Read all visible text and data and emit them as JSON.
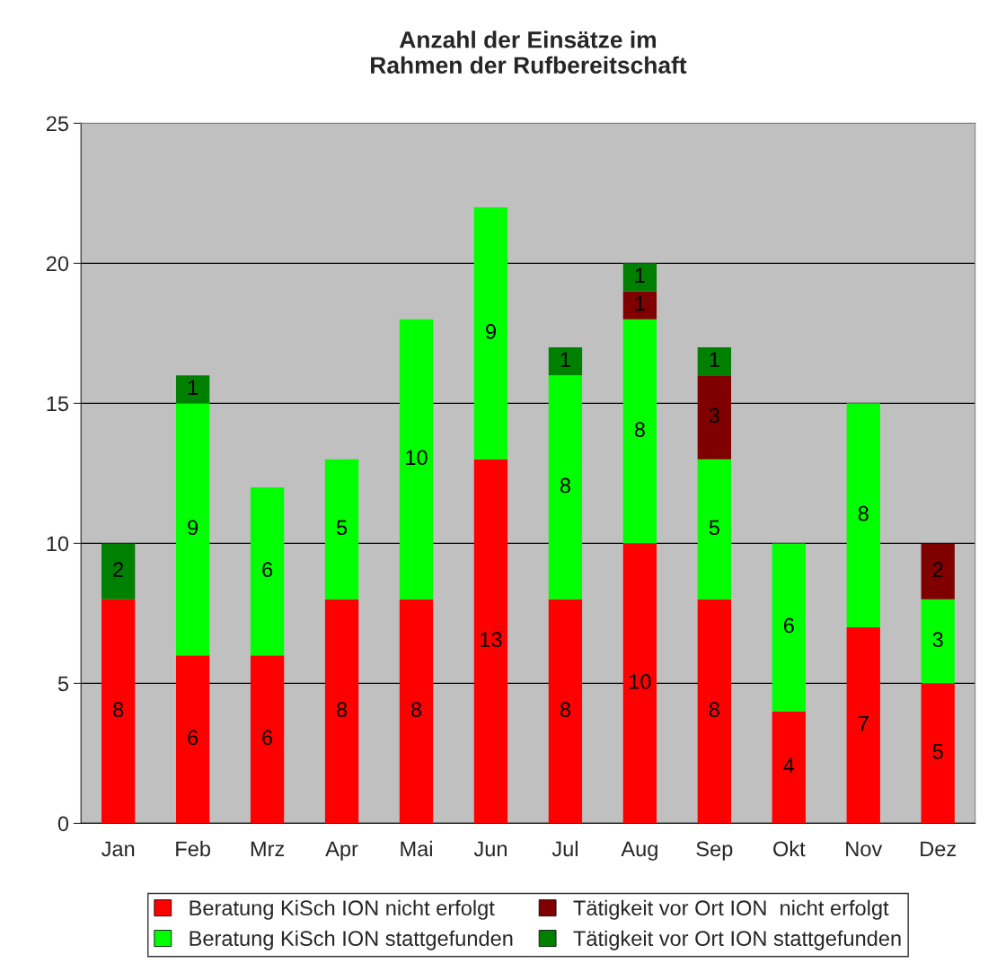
{
  "chart_data": {
    "type": "bar",
    "title": "Anzahl der Einsätze im\nRahmen der Rufbereitschaft",
    "categories": [
      "Jan",
      "Feb",
      "Mrz",
      "Apr",
      "Mai",
      "Jun",
      "Jul",
      "Aug",
      "Sep",
      "Okt",
      "Nov",
      "Dez"
    ],
    "stacked": true,
    "series": [
      {
        "name": "Beratung KiSch ION nicht erfolgt",
        "color": "#ff0000",
        "values": [
          8,
          6,
          6,
          8,
          8,
          13,
          8,
          10,
          8,
          4,
          7,
          5
        ]
      },
      {
        "name": "Beratung KiSch ION stattgefunden",
        "color": "#00ff00",
        "values": [
          null,
          9,
          6,
          5,
          10,
          9,
          8,
          8,
          5,
          6,
          8,
          3
        ]
      },
      {
        "name": "Tätigkeit vor Ort ION  nicht erfolgt",
        "color": "#800000",
        "values": [
          null,
          null,
          null,
          null,
          null,
          null,
          null,
          1,
          3,
          null,
          null,
          2
        ]
      },
      {
        "name": "Tätigkeit vor Ort ION stattgefunden",
        "color": "#008000",
        "values": [
          2,
          1,
          null,
          null,
          null,
          null,
          1,
          1,
          1,
          null,
          null,
          null
        ]
      }
    ],
    "ylim": [
      0,
      25
    ],
    "yticks": [
      0,
      5,
      10,
      15,
      20,
      25
    ],
    "grid": "y",
    "data_labels": true,
    "legend": "bottom"
  }
}
